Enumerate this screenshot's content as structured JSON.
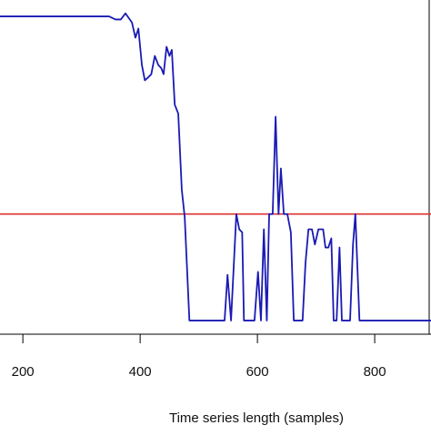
{
  "chart_data": {
    "type": "line",
    "x_label": "Time series length (samples)",
    "x": [
      161,
      332,
      347,
      358,
      367,
      375,
      386,
      392,
      397,
      403,
      408,
      414,
      419,
      425,
      431,
      436,
      440,
      445,
      450,
      454,
      459,
      465,
      471,
      476,
      484,
      544,
      549,
      555,
      564,
      569,
      574,
      577,
      595,
      601,
      606,
      611,
      616,
      620,
      626,
      631,
      636,
      640,
      645,
      651,
      657,
      662,
      677,
      682,
      687,
      693,
      698,
      704,
      712,
      716,
      721,
      726,
      730,
      735,
      740,
      744,
      758,
      763,
      767,
      774,
      896
    ],
    "series": [
      {
        "color": "#1a1ab4",
        "values": [
          1.0,
          1.0,
          1.0,
          0.99,
          0.99,
          1.01,
          0.98,
          0.93,
          0.96,
          0.84,
          0.79,
          0.8,
          0.81,
          0.87,
          0.84,
          0.83,
          0.81,
          0.9,
          0.87,
          0.89,
          0.71,
          0.68,
          0.43,
          0.34,
          0,
          0,
          0.15,
          0,
          0.35,
          0.3,
          0.29,
          0,
          0,
          0.16,
          0,
          0.3,
          0,
          0.35,
          0.35,
          0.67,
          0.35,
          0.5,
          0.35,
          0.35,
          0.29,
          0,
          0,
          0.19,
          0.3,
          0.3,
          0.25,
          0.3,
          0.3,
          0.24,
          0.24,
          0.27,
          0,
          0,
          0.24,
          0,
          0,
          0.25,
          0.35,
          0,
          0
        ]
      }
    ],
    "hline": {
      "value": 0.35,
      "color": "#e03030"
    },
    "xlim": [
      161,
      896
    ],
    "xticks": [
      200,
      400,
      600,
      800
    ],
    "ylim": [
      -0.045,
      1.054
    ]
  }
}
